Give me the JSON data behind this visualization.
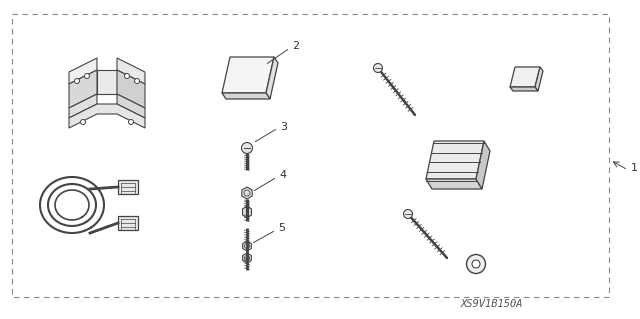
{
  "bg_color": "#ffffff",
  "border_color": "#777777",
  "line_color": "#444444",
  "text_color": "#333333",
  "title": "XS9V1B150A",
  "labels": [
    "1",
    "2",
    "3",
    "4",
    "5"
  ],
  "figsize": [
    6.4,
    3.19
  ],
  "dpi": 100
}
